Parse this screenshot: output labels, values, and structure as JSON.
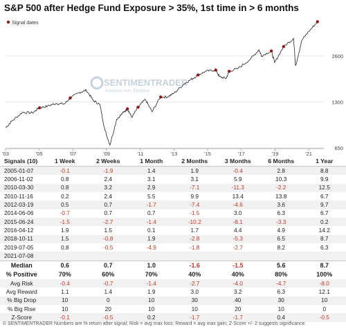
{
  "title": "S&P 500 after Hedge Fund Exposure > 35%, 1st time in > 6 months",
  "chart_data": {
    "type": "line",
    "legend": {
      "label": "Signal dates",
      "color": "#8b1a1a",
      "placement": "top-left"
    },
    "line_color": "#222222",
    "y_scale": "log",
    "ylim": [
      650,
      4600
    ],
    "y_ticks": [
      "2600",
      "1300",
      "650"
    ],
    "x_ticks": [
      "'03",
      "'05",
      "'07",
      "'09",
      "'11",
      "'13",
      "'15",
      "'17",
      "'19",
      "'21"
    ],
    "series_points": [
      {
        "x": 2003.0,
        "y": 880
      },
      {
        "x": 2003.4,
        "y": 980
      },
      {
        "x": 2004.0,
        "y": 1110
      },
      {
        "x": 2004.6,
        "y": 1100
      },
      {
        "x": 2005.0,
        "y": 1190
      },
      {
        "x": 2005.5,
        "y": 1220
      },
      {
        "x": 2006.0,
        "y": 1270
      },
      {
        "x": 2006.5,
        "y": 1260
      },
      {
        "x": 2006.84,
        "y": 1380
      },
      {
        "x": 2007.4,
        "y": 1500
      },
      {
        "x": 2007.8,
        "y": 1550
      },
      {
        "x": 2008.2,
        "y": 1330
      },
      {
        "x": 2008.6,
        "y": 1250
      },
      {
        "x": 2008.9,
        "y": 850
      },
      {
        "x": 2009.2,
        "y": 680
      },
      {
        "x": 2009.6,
        "y": 1000
      },
      {
        "x": 2010.0,
        "y": 1110
      },
      {
        "x": 2010.24,
        "y": 1170
      },
      {
        "x": 2010.5,
        "y": 1030
      },
      {
        "x": 2010.87,
        "y": 1200
      },
      {
        "x": 2011.3,
        "y": 1350
      },
      {
        "x": 2011.7,
        "y": 1120
      },
      {
        "x": 2012.2,
        "y": 1400
      },
      {
        "x": 2012.6,
        "y": 1400
      },
      {
        "x": 2013.0,
        "y": 1480
      },
      {
        "x": 2013.6,
        "y": 1700
      },
      {
        "x": 2014.0,
        "y": 1820
      },
      {
        "x": 2014.43,
        "y": 1950
      },
      {
        "x": 2014.9,
        "y": 2060
      },
      {
        "x": 2015.48,
        "y": 2100
      },
      {
        "x": 2015.7,
        "y": 1900
      },
      {
        "x": 2016.1,
        "y": 1850
      },
      {
        "x": 2016.28,
        "y": 2060
      },
      {
        "x": 2016.8,
        "y": 2150
      },
      {
        "x": 2017.5,
        "y": 2450
      },
      {
        "x": 2018.05,
        "y": 2850
      },
      {
        "x": 2018.2,
        "y": 2600
      },
      {
        "x": 2018.78,
        "y": 2800
      },
      {
        "x": 2018.98,
        "y": 2350
      },
      {
        "x": 2019.5,
        "y": 2980
      },
      {
        "x": 2020.1,
        "y": 3380
      },
      {
        "x": 2020.22,
        "y": 2240
      },
      {
        "x": 2020.6,
        "y": 3300
      },
      {
        "x": 2021.0,
        "y": 3750
      },
      {
        "x": 2021.52,
        "y": 4350
      }
    ],
    "signals": [
      {
        "date": "2005-01-07",
        "x": 2005.02,
        "y": 1190
      },
      {
        "date": "2006-11-02",
        "x": 2006.84,
        "y": 1380
      },
      {
        "date": "2010-03-30",
        "x": 2010.24,
        "y": 1170
      },
      {
        "date": "2010-11-16",
        "x": 2010.87,
        "y": 1200
      },
      {
        "date": "2012-03-19",
        "x": 2012.21,
        "y": 1400
      },
      {
        "date": "2014-06-06",
        "x": 2014.43,
        "y": 1950
      },
      {
        "date": "2015-06-24",
        "x": 2015.48,
        "y": 2100
      },
      {
        "date": "2016-04-12",
        "x": 2016.28,
        "y": 2060
      },
      {
        "date": "2018-10-11",
        "x": 2018.78,
        "y": 2800
      },
      {
        "date": "2019-07-05",
        "x": 2019.51,
        "y": 2990
      },
      {
        "date": "2021-07-08",
        "x": 2021.52,
        "y": 4350
      }
    ]
  },
  "watermark": {
    "name": "SENTIMENTRADER",
    "tagline": "Analysis over Emotion"
  },
  "table": {
    "headers": [
      "Signals (10)",
      "1 Week",
      "2 Weeks",
      "1 Month",
      "2 Months",
      "3 Months",
      "6 Months",
      "1 Year"
    ],
    "rows": [
      [
        "2005-01-07",
        "-0.1",
        "-1.9",
        "1.4",
        "1.9",
        "-0.4",
        "2.8",
        "8.8"
      ],
      [
        "2006-11-02",
        "0.8",
        "2.4",
        "3.1",
        "3.1",
        "5.9",
        "10.3",
        "9.9"
      ],
      [
        "2010-03-30",
        "0.8",
        "3.2",
        "2.9",
        "-7.1",
        "-11.3",
        "-2.2",
        "12.5"
      ],
      [
        "2010-11-16",
        "0.2",
        "2.4",
        "5.5",
        "9.9",
        "13.4",
        "13.8",
        "6.7"
      ],
      [
        "2012-03-19",
        "0.5",
        "0.7",
        "-1.7",
        "-7.4",
        "-4.6",
        "3.6",
        "9.7"
      ],
      [
        "2014-06-06",
        "-0.7",
        "0.7",
        "0.7",
        "-1.5",
        "3.0",
        "6.3",
        "6.7"
      ],
      [
        "2015-06-24",
        "-1.5",
        "-2.7",
        "-1.4",
        "-10.2",
        "-8.1",
        "-3.3",
        "0.2"
      ],
      [
        "2016-04-12",
        "1.9",
        "1.5",
        "0.1",
        "1.7",
        "4.4",
        "4.9",
        "14.2"
      ],
      [
        "2018-10-11",
        "1.5",
        "-0.8",
        "1.9",
        "-2.8",
        "-5.3",
        "6.5",
        "8.7"
      ],
      [
        "2019-07-05",
        "0.8",
        "-0.5",
        "-4.9",
        "-1.8",
        "-2.7",
        "8.2",
        "6.3"
      ],
      [
        "2021-07-08",
        "",
        "",
        "",
        "",
        "",
        "",
        ""
      ]
    ],
    "summary": [
      [
        "Median",
        "0.6",
        "0.7",
        "1.0",
        "-1.6",
        "-1.5",
        "5.6",
        "8.7"
      ],
      [
        "% Positive",
        "70%",
        "60%",
        "70%",
        "40%",
        "40%",
        "80%",
        "100%"
      ]
    ],
    "stats": [
      [
        "Avg Risk",
        "-0.4",
        "-0.7",
        "-1.4",
        "-2.7",
        "-4.0",
        "-4.7",
        "-8.0"
      ],
      [
        "Avg Reward",
        "1.1",
        "1.4",
        "1.9",
        "3.0",
        "3.2",
        "6.3",
        "12.1"
      ],
      [
        "% Big Drop",
        "10",
        "0",
        "10",
        "30",
        "40",
        "30",
        "10"
      ],
      [
        "% Big Rise",
        "10",
        "20",
        "10",
        "10",
        "20",
        "10",
        "0"
      ],
      [
        "Z-Score",
        "-0.1",
        "-0.5",
        "0.2",
        "-1.7",
        "-1.7",
        "0.4",
        "-0.5"
      ]
    ]
  },
  "footer": "© SENTIMENTRADER  Numbers are % return after signal; Risk = avg max loss; Reward = avg max gain; Z-Score +/- 2 suggests significance."
}
